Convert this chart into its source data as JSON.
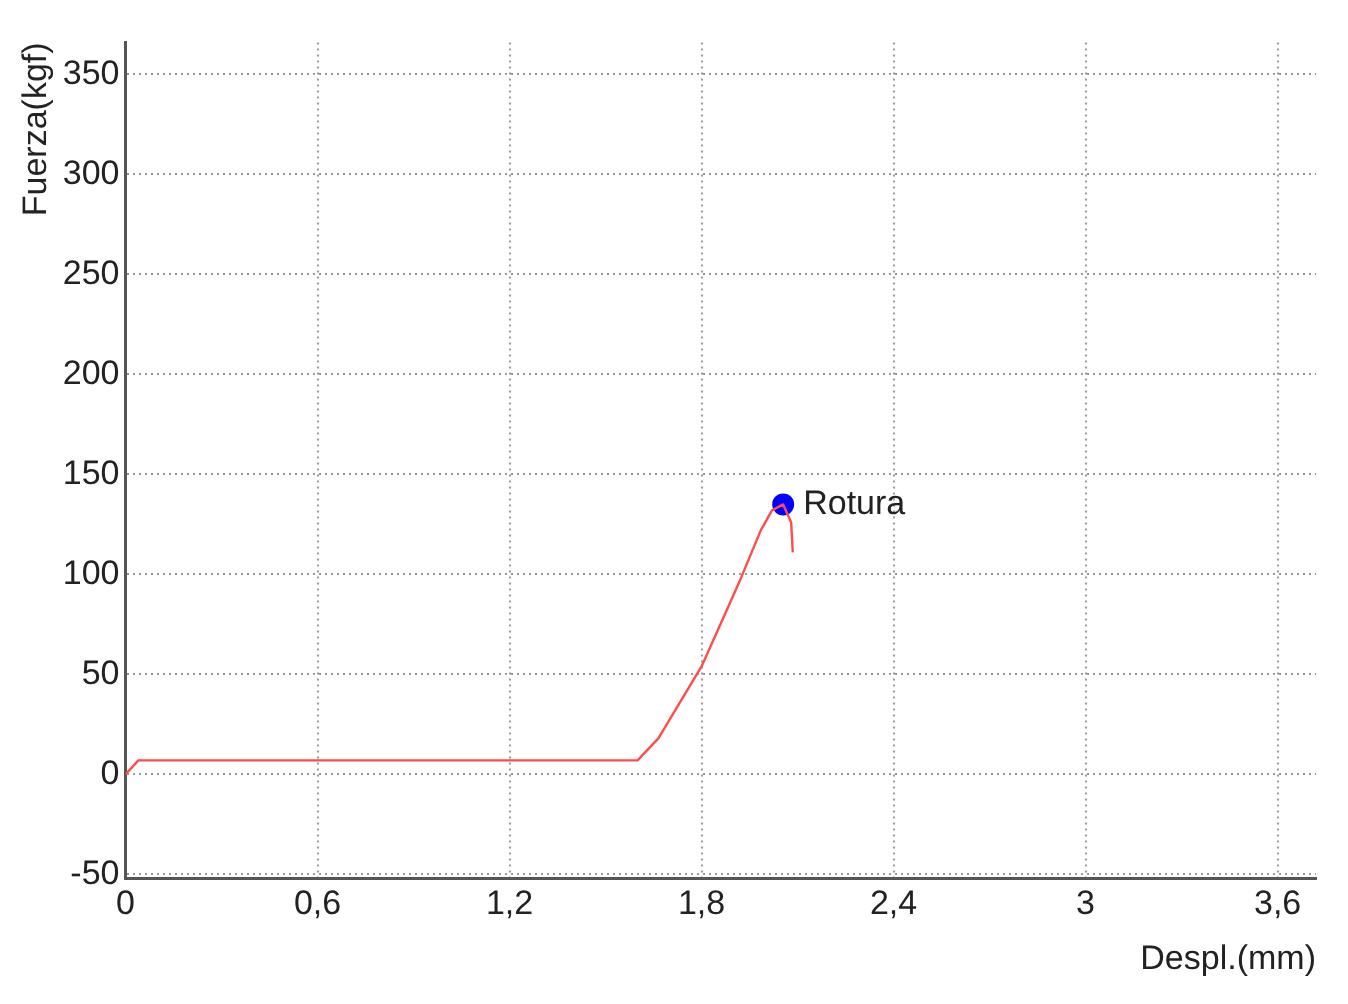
{
  "chart_data": {
    "type": "line",
    "xlabel": "Despl.(mm)",
    "ylabel": "Fuerza(kgf)",
    "xlim": [
      0,
      3.72
    ],
    "ylim": [
      -52,
      366
    ],
    "xticks": [
      {
        "value": 0,
        "label": "0"
      },
      {
        "value": 0.6,
        "label": "0,6"
      },
      {
        "value": 1.2,
        "label": "1,2"
      },
      {
        "value": 1.8,
        "label": "1,8"
      },
      {
        "value": 2.4,
        "label": "2,4"
      },
      {
        "value": 3,
        "label": "3"
      },
      {
        "value": 3.6,
        "label": "3,6"
      }
    ],
    "yticks": [
      -50,
      0,
      50,
      100,
      150,
      200,
      250,
      300,
      350
    ],
    "grid": true,
    "legend": false,
    "marker": "none",
    "line_style": "solid",
    "series": [
      {
        "color": "#ff4d4d",
        "x": [
          0,
          0.04,
          1.6,
          1.665,
          1.8,
          1.92,
          1.985,
          2.02,
          2.055,
          2.08,
          2.085
        ],
        "values": [
          0,
          7,
          7,
          18,
          54,
          97,
          122,
          132,
          135,
          126,
          111
        ]
      },
      {
        "type": "scatter",
        "color": "#0000ff",
        "marker": "circle",
        "x": [
          2.055
        ],
        "values": [
          135
        ]
      }
    ],
    "annotations": [
      {
        "text": "Rotura",
        "x": 2.055,
        "y": 135
      }
    ]
  }
}
